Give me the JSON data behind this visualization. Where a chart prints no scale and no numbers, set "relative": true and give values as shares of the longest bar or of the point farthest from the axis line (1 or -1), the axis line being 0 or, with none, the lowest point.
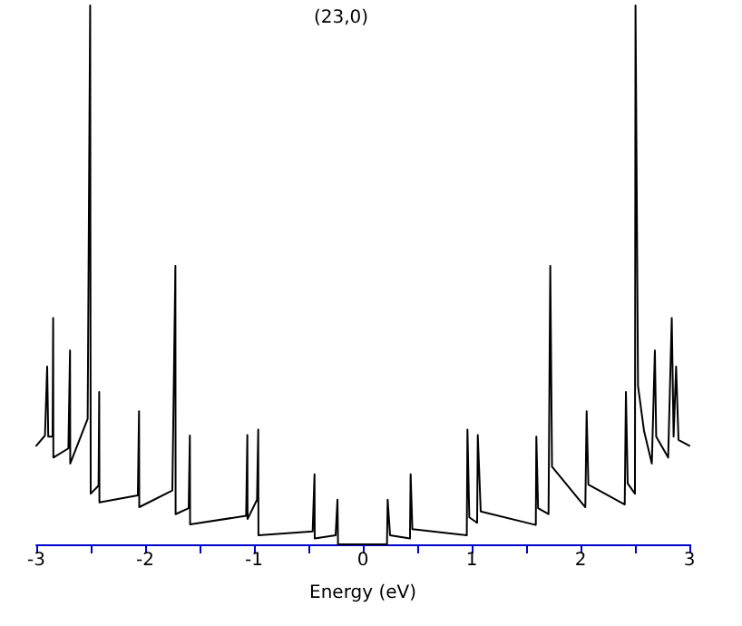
{
  "chart_data": {
    "type": "line",
    "title": "(23,0)",
    "xlabel": "Energy (eV)",
    "relative": true,
    "marker": "none",
    "line_style": "solid",
    "xlim": [
      -3,
      3
    ],
    "xticks": [
      -3,
      {
        "value": -2.5,
        "label": null
      },
      -2,
      {
        "value": -1.5,
        "label": null
      },
      -1,
      {
        "value": -0.5,
        "label": null
      },
      0,
      {
        "value": 0.5,
        "label": null
      },
      1,
      {
        "value": 1.5,
        "label": null
      },
      2,
      {
        "value": 2.5,
        "label": null
      },
      3
    ],
    "series": [
      {
        "color": "#000000",
        "x": [
          -3,
          -2.92,
          -2.9,
          -2.89,
          -2.85,
          -2.845,
          -2.843,
          -2.705,
          -2.69,
          -2.688,
          -2.528,
          -2.505,
          -2.5,
          -2.428,
          -2.422,
          -2.42,
          -2.067,
          -2.056,
          -2.054,
          -1.75,
          -1.722,
          -1.72,
          -1.6,
          -1.589,
          -1.587,
          -1.072,
          -1.061,
          -1.059,
          -0.972,
          -0.961,
          -0.959,
          -0.461,
          -0.444,
          -0.442,
          -0.25,
          -0.233,
          -0.228,
          0.222,
          0.228,
          0.25,
          0.433,
          0.439,
          0.455,
          0.955,
          0.961,
          0.978,
          1.05,
          1.056,
          1.083,
          1.589,
          1.594,
          1.61,
          1.706,
          1.722,
          1.738,
          2.044,
          2.056,
          2.072,
          2.406,
          2.417,
          2.433,
          2.5,
          2.505,
          2.528,
          2.583,
          2.655,
          2.683,
          2.695,
          2.805,
          2.838,
          2.855,
          2.878,
          2.9,
          3
        ],
        "values": [
          0.183,
          0.202,
          0.33,
          0.2,
          0.2,
          0.42,
          0.161,
          0.178,
          0.36,
          0.15,
          0.233,
          1,
          0.094,
          0.109,
          0.283,
          0.078,
          0.091,
          0.247,
          0.069,
          0.1,
          0.517,
          0.056,
          0.067,
          0.202,
          0.037,
          0.053,
          0.203,
          0.047,
          0.083,
          0.213,
          0.017,
          0.024,
          0.13,
          0.011,
          0.017,
          0.083,
          0,
          0,
          0.083,
          0.017,
          0.011,
          0.13,
          0.028,
          0.017,
          0.213,
          0.05,
          0.04,
          0.203,
          0.061,
          0.036,
          0.2,
          0.067,
          0.056,
          0.517,
          0.144,
          0.069,
          0.247,
          0.111,
          0.074,
          0.283,
          0.113,
          0.094,
          1,
          0.294,
          0.211,
          0.15,
          0.36,
          0.2,
          0.161,
          0.42,
          0.2,
          0.33,
          0.194,
          0.183
        ]
      }
    ]
  }
}
